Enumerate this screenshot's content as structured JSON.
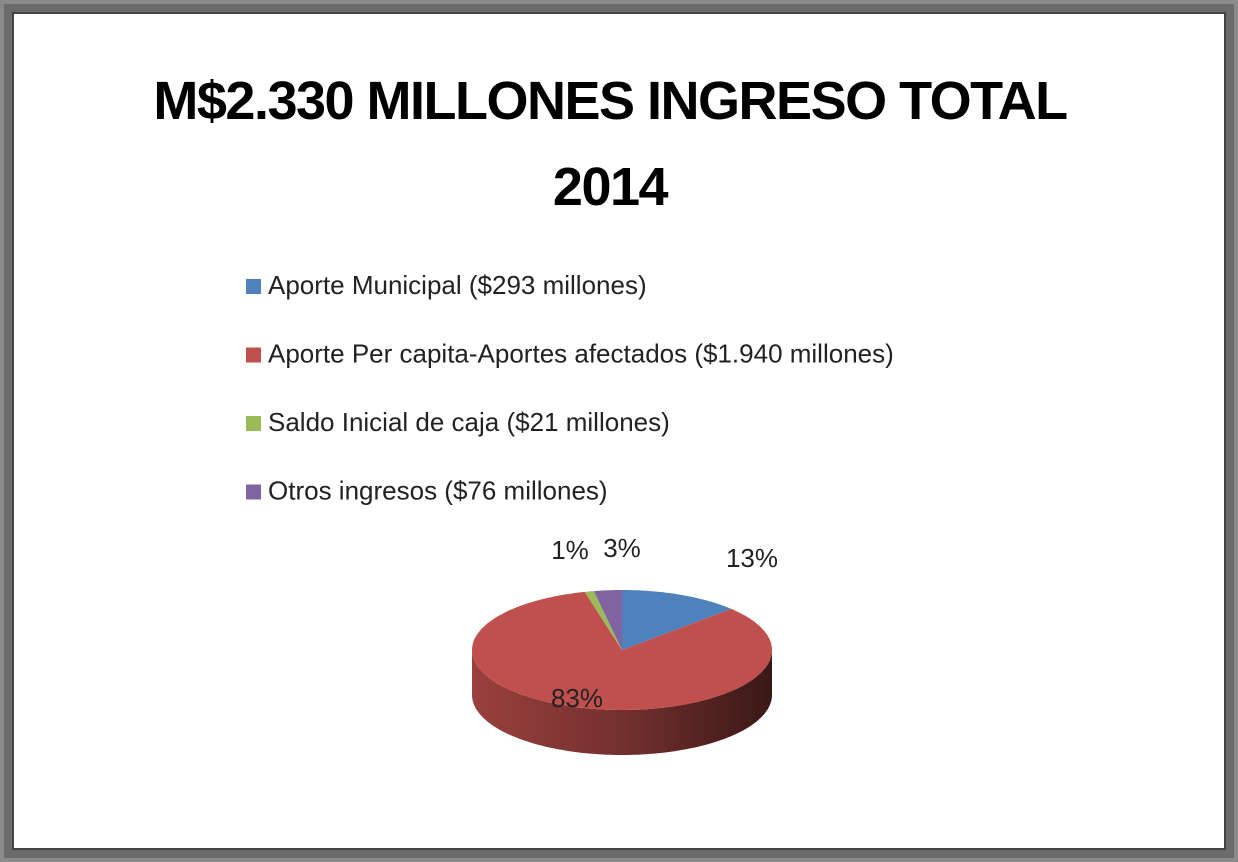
{
  "chart_data": {
    "type": "pie",
    "title": "M$2.330 MILLONES INGRESO TOTAL 2014",
    "categories": [
      "Aporte Municipal ($293 millones)",
      "Aporte Per capita-Aportes afectados ($1.940 millones)",
      "Saldo Inicial de caja ($21 millones)",
      "Otros ingresos ($76 millones)"
    ],
    "values": [
      13,
      83,
      1,
      3
    ],
    "value_labels": [
      "13%",
      "83%",
      "1%",
      "3%"
    ],
    "colors": [
      "#4f81bd",
      "#c0504d",
      "#9bbb59",
      "#8064a2"
    ],
    "legend": "top"
  }
}
